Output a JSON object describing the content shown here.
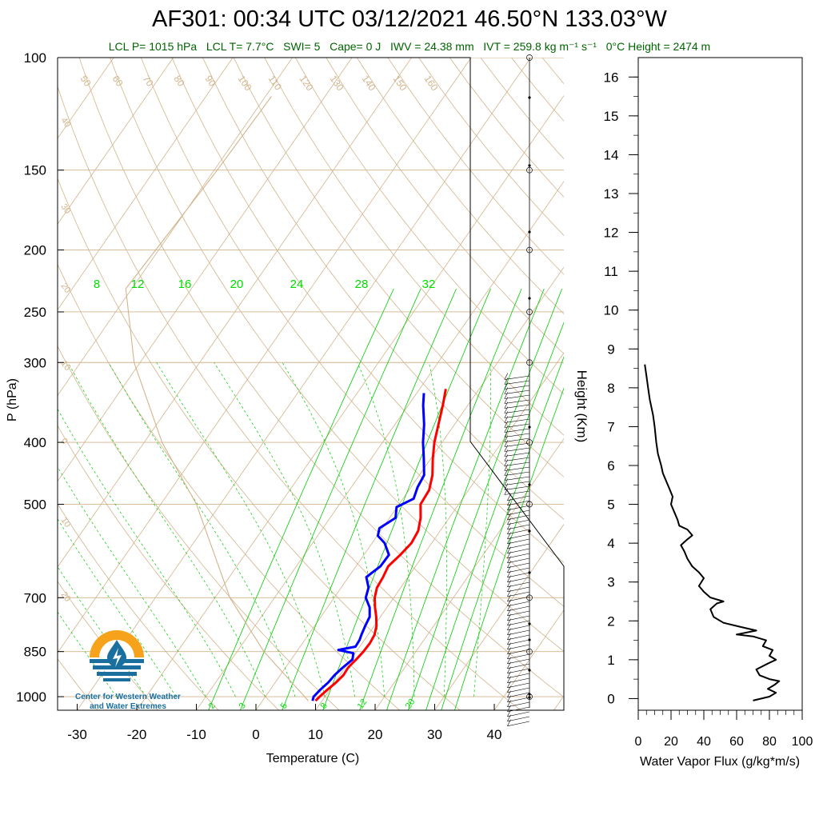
{
  "title": "AF301: 00:34 UTC 03/12/2021  46.50°N 133.03°W",
  "subtitle": {
    "lcl_p": "LCL P= 1015 hPa",
    "lcl_t": "LCL T= 7.7°C",
    "swi": "SWI= 5",
    "cape": "Cape= 0 J",
    "iwv": "IWV = 24.38 mm",
    "ivt": "IVT = 259.8 kg m⁻¹ s⁻¹",
    "zero_height": "0°C Height = 2474 m"
  },
  "logo": {
    "line1": "Center for Western Weather",
    "line2": "and Water Extremes"
  },
  "colors": {
    "temperature": "#ff0000",
    "dewpoint": "#0000ff",
    "isotherm": "#d2b48c",
    "mixing_ratio": "#00cc00",
    "moist_adiabat": "#00cc00",
    "dry_adiabat": "#d2b48c",
    "flux": "#000000",
    "subtitle": "#006400",
    "logo_orange": "#f7a21b",
    "logo_blue": "#1a6f9f"
  },
  "chart_data": [
    {
      "type": "line",
      "name": "skew-t",
      "xlabel": "Temperature (C)",
      "ylabel": "P (hPa)",
      "xlim": [
        -35,
        50
      ],
      "ylim": [
        1050,
        100
      ],
      "y_scale": "log",
      "x_ticks": [
        -30,
        -20,
        -10,
        0,
        10,
        20,
        30,
        40
      ],
      "y_ticks": [
        100,
        150,
        200,
        250,
        300,
        400,
        500,
        700,
        850,
        1000
      ],
      "isotherm_labels": [
        "50",
        "60",
        "70",
        "80",
        "90",
        "100",
        "110",
        "120",
        "130",
        "140",
        "150",
        "160"
      ],
      "dry_adiabat_labels_left": [
        "40",
        "30",
        "20",
        "10",
        "0",
        "10",
        "20"
      ],
      "dry_adiabat_labels_right": [
        "30",
        "20",
        "10",
        "0",
        "10",
        "20",
        "30"
      ],
      "mixing_ratio_labels": [
        "8",
        "12",
        "16",
        "20",
        "24",
        "28",
        "32"
      ],
      "mixing_ratio_labels_bottom": [
        "2",
        "3",
        "5",
        "8",
        "12",
        "20"
      ],
      "series": [
        {
          "name": "temperature",
          "points": [
            [
              1015,
              8.9
            ],
            [
              1000,
              9.1
            ],
            [
              975,
              9.6
            ],
            [
              950,
              10.2
            ],
            [
              925,
              10.6
            ],
            [
              900,
              10.5
            ],
            [
              875,
              10.9
            ],
            [
              850,
              11.2
            ],
            [
              825,
              11.3
            ],
            [
              800,
              11.1
            ],
            [
              775,
              10.4
            ],
            [
              750,
              9.3
            ],
            [
              725,
              8.0
            ],
            [
              700,
              6.8
            ],
            [
              675,
              6.0
            ],
            [
              650,
              5.8
            ],
            [
              625,
              5.4
            ],
            [
              600,
              6.1
            ],
            [
              575,
              6.6
            ],
            [
              550,
              6.3
            ],
            [
              525,
              5.2
            ],
            [
              500,
              3.6
            ],
            [
              475,
              3.4
            ],
            [
              450,
              2.2
            ],
            [
              425,
              0.4
            ],
            [
              400,
              -1.3
            ],
            [
              375,
              -2.7
            ],
            [
              350,
              -4.2
            ],
            [
              330,
              -5.6
            ]
          ]
        },
        {
          "name": "dewpoint",
          "points": [
            [
              1015,
              8.4
            ],
            [
              1000,
              8.1
            ],
            [
              975,
              8.4
            ],
            [
              950,
              8.9
            ],
            [
              925,
              9.1
            ],
            [
              900,
              9.6
            ],
            [
              875,
              10.3
            ],
            [
              855,
              9.7
            ],
            [
              845,
              6.8
            ],
            [
              835,
              9.3
            ],
            [
              815,
              9.2
            ],
            [
              800,
              8.9
            ],
            [
              775,
              8.5
            ],
            [
              750,
              8.2
            ],
            [
              725,
              7.1
            ],
            [
              700,
              5.3
            ],
            [
              675,
              4.6
            ],
            [
              650,
              3.0
            ],
            [
              625,
              4.1
            ],
            [
              600,
              4.2
            ],
            [
              575,
              2.1
            ],
            [
              560,
              0.1
            ],
            [
              545,
              -0.5
            ],
            [
              525,
              1.0
            ],
            [
              505,
              -0.1
            ],
            [
              490,
              1.8
            ],
            [
              470,
              1.1
            ],
            [
              450,
              0.8
            ],
            [
              425,
              -1.1
            ],
            [
              400,
              -3.2
            ],
            [
              375,
              -5.1
            ],
            [
              350,
              -7.5
            ],
            [
              335,
              -8.8
            ]
          ]
        },
        {
          "name": "parcel",
          "points": [
            [
              1015,
              7.7
            ],
            [
              850,
              -5.5
            ],
            [
              700,
              -17.5
            ],
            [
              500,
              -34.0
            ],
            [
              400,
              -47.0
            ],
            [
              300,
              -61.0
            ],
            [
              230,
              -71.0
            ],
            [
              200,
              -70.5
            ],
            [
              150,
              -69.5
            ],
            [
              115,
              -69.0
            ]
          ]
        }
      ]
    },
    {
      "type": "line",
      "name": "water-vapor-flux",
      "xlabel": "Water Vapor Flux (g/kg*m/s)",
      "ylabel": "Height (Km)",
      "xlim": [
        0,
        100
      ],
      "ylim": [
        -0.3,
        16.5
      ],
      "x_ticks": [
        0,
        20,
        40,
        60,
        80,
        100
      ],
      "y_ticks": [
        0,
        1,
        2,
        3,
        4,
        5,
        6,
        7,
        8,
        9,
        10,
        11,
        12,
        13,
        14,
        15,
        16
      ],
      "points": [
        [
          70,
          -0.05
        ],
        [
          80,
          0.05
        ],
        [
          84,
          0.15
        ],
        [
          79,
          0.25
        ],
        [
          83,
          0.35
        ],
        [
          86,
          0.45
        ],
        [
          80,
          0.5
        ],
        [
          74,
          0.6
        ],
        [
          72,
          0.75
        ],
        [
          79,
          0.9
        ],
        [
          84,
          1.0
        ],
        [
          80,
          1.1
        ],
        [
          82,
          1.25
        ],
        [
          76,
          1.35
        ],
        [
          78,
          1.5
        ],
        [
          70,
          1.6
        ],
        [
          60,
          1.65
        ],
        [
          72,
          1.75
        ],
        [
          62,
          1.85
        ],
        [
          52,
          1.95
        ],
        [
          46,
          2.1
        ],
        [
          44,
          2.3
        ],
        [
          48,
          2.45
        ],
        [
          52,
          2.5
        ],
        [
          44,
          2.6
        ],
        [
          40,
          2.75
        ],
        [
          37,
          2.9
        ],
        [
          40,
          3.1
        ],
        [
          37,
          3.25
        ],
        [
          33,
          3.4
        ],
        [
          30,
          3.6
        ],
        [
          28,
          3.8
        ],
        [
          26,
          3.95
        ],
        [
          30,
          4.1
        ],
        [
          33,
          4.2
        ],
        [
          30,
          4.35
        ],
        [
          25,
          4.45
        ],
        [
          24,
          4.6
        ],
        [
          22,
          4.8
        ],
        [
          20,
          5.0
        ],
        [
          21,
          5.2
        ],
        [
          19,
          5.4
        ],
        [
          17,
          5.6
        ],
        [
          15,
          5.8
        ],
        [
          14,
          6.0
        ],
        [
          12,
          6.3
        ],
        [
          11,
          6.6
        ],
        [
          10,
          7.0
        ],
        [
          9,
          7.3
        ],
        [
          7,
          7.7
        ],
        [
          6,
          8.0
        ],
        [
          5,
          8.3
        ],
        [
          4,
          8.6
        ]
      ]
    }
  ]
}
